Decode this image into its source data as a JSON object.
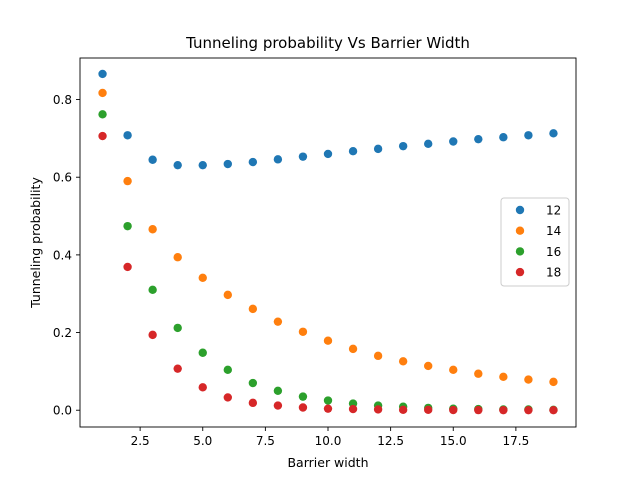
{
  "chart_data": {
    "type": "scatter",
    "title": "Tunneling probability Vs Barrier Width",
    "xlabel": "Barrier width",
    "ylabel": "Tunneling probability",
    "xlim": [
      0.1,
      19.9
    ],
    "ylim": [
      -0.0432,
      0.907
    ],
    "xticks": [
      2.5,
      5.0,
      7.5,
      10.0,
      12.5,
      15.0,
      17.5
    ],
    "xtick_labels": [
      "2.5",
      "5.0",
      "7.5",
      "10.0",
      "12.5",
      "15.0",
      "17.5"
    ],
    "yticks": [
      0.0,
      0.2,
      0.4,
      0.6,
      0.8
    ],
    "ytick_labels": [
      "0.0",
      "0.2",
      "0.4",
      "0.6",
      "0.8"
    ],
    "grid": false,
    "legend_position": "right",
    "x": [
      1,
      2,
      3,
      4,
      5,
      6,
      7,
      8,
      9,
      10,
      11,
      12,
      13,
      14,
      15,
      16,
      17,
      18,
      19
    ],
    "series": [
      {
        "name": "12",
        "color": "#1f77b4",
        "values": [
          0.866,
          0.708,
          0.645,
          0.631,
          0.631,
          0.634,
          0.639,
          0.646,
          0.653,
          0.66,
          0.667,
          0.673,
          0.68,
          0.686,
          0.692,
          0.698,
          0.703,
          0.708,
          0.713
        ]
      },
      {
        "name": "14",
        "color": "#ff7f0e",
        "values": [
          0.817,
          0.59,
          0.466,
          0.394,
          0.341,
          0.297,
          0.261,
          0.228,
          0.202,
          0.179,
          0.158,
          0.14,
          0.126,
          0.114,
          0.104,
          0.094,
          0.086,
          0.079,
          0.073
        ]
      },
      {
        "name": "16",
        "color": "#2ca02c",
        "values": [
          0.762,
          0.474,
          0.31,
          0.212,
          0.148,
          0.104,
          0.07,
          0.05,
          0.035,
          0.025,
          0.017,
          0.012,
          0.009,
          0.006,
          0.004,
          0.003,
          0.002,
          0.002,
          0.001
        ]
      },
      {
        "name": "18",
        "color": "#d62728",
        "values": [
          0.706,
          0.369,
          0.194,
          0.107,
          0.059,
          0.033,
          0.019,
          0.012,
          0.007,
          0.004,
          0.003,
          0.002,
          0.001,
          0.001,
          0.0005,
          0.0003,
          0.0002,
          0.0001,
          0.0001
        ]
      }
    ]
  }
}
